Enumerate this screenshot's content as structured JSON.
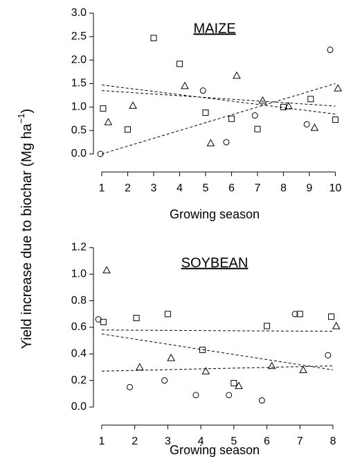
{
  "ylabel": {
    "text": "Yield increase due to biochar (Mg ha",
    "sup": "−1",
    "end": ")"
  },
  "chart_data": [
    {
      "type": "scatter",
      "title": "MAIZE",
      "xlabel": "Growing season",
      "xlim": [
        0.68,
        10.15
      ],
      "ylim": [
        0,
        3
      ],
      "xticks": [
        1,
        2,
        3,
        4,
        5,
        6,
        7,
        8,
        9,
        10
      ],
      "yticks": [
        {
          "value": 0,
          "label": "0.0"
        },
        {
          "value": 0.5,
          "label": "0.5"
        },
        {
          "value": 1,
          "label": "1.0"
        },
        {
          "value": 1.5,
          "label": "1.5"
        },
        {
          "value": 2,
          "label": "2.0"
        },
        {
          "value": 2.5,
          "label": "2.5"
        },
        {
          "value": 3,
          "label": "3.0"
        }
      ],
      "series": [
        {
          "marker": "square",
          "color": "#000000",
          "x": [
            1.05,
            2,
            3,
            4,
            5,
            6,
            7,
            8,
            9.05,
            10
          ],
          "values": [
            0.97,
            0.52,
            2.47,
            1.92,
            0.88,
            0.75,
            0.53,
            1.0,
            1.17,
            0.73
          ],
          "fit": {
            "x": [
              1,
              10
            ],
            "values": [
              1.35,
              1.02
            ]
          }
        },
        {
          "marker": "triangle",
          "color": "#000000",
          "x": [
            1.25,
            2.2,
            4.2,
            5.2,
            6.2,
            7.2,
            8.2,
            9.2,
            10.1
          ],
          "values": [
            0.68,
            1.03,
            1.45,
            0.23,
            1.67,
            1.14,
            1.02,
            0.56,
            1.4
          ],
          "fit": {
            "x": [
              1,
              10
            ],
            "values": [
              1.47,
              0.85
            ]
          }
        },
        {
          "marker": "circle",
          "color": "#000000",
          "x": [
            0.95,
            4.9,
            5.8,
            6.9,
            8.9,
            9.8
          ],
          "values": [
            0.0,
            1.35,
            0.25,
            0.82,
            0.63,
            2.22
          ],
          "fit": {
            "x": [
              1,
              10
            ],
            "values": [
              0.0,
              1.5
            ]
          }
        }
      ]
    },
    {
      "type": "scatter",
      "title": "SOYBEAN",
      "xlabel": "Growing season",
      "xlim": [
        0.75,
        8.19
      ],
      "ylim": [
        0,
        1.2
      ],
      "xticks": [
        1,
        2,
        3,
        4,
        5,
        6,
        7,
        8
      ],
      "yticks": [
        {
          "value": 0,
          "label": "0.0"
        },
        {
          "value": 0.2,
          "label": "0.2"
        },
        {
          "value": 0.4,
          "label": "0.4"
        },
        {
          "value": 0.6,
          "label": "0.6"
        },
        {
          "value": 0.8,
          "label": "0.8"
        },
        {
          "value": 1,
          "label": "1.0"
        },
        {
          "value": 1.2,
          "label": "1.2"
        }
      ],
      "series": [
        {
          "marker": "square",
          "color": "#000000",
          "x": [
            1.05,
            2.05,
            3,
            4.05,
            5,
            6,
            7,
            7.95
          ],
          "values": [
            0.64,
            0.67,
            0.7,
            0.43,
            0.18,
            0.61,
            0.7,
            0.68
          ],
          "fit": {
            "x": [
              1,
              8
            ],
            "values": [
              0.58,
              0.57
            ]
          }
        },
        {
          "marker": "triangle",
          "color": "#000000",
          "x": [
            1.15,
            2.15,
            3.1,
            4.15,
            5.15,
            6.15,
            7.1,
            8.1
          ],
          "values": [
            1.03,
            0.3,
            0.37,
            0.27,
            0.16,
            0.31,
            0.28,
            0.61
          ],
          "fit": {
            "x": [
              1,
              8
            ],
            "values": [
              0.55,
              0.28
            ]
          }
        },
        {
          "marker": "circle",
          "color": "#000000",
          "x": [
            0.9,
            1.85,
            2.9,
            3.85,
            4.85,
            5.85,
            6.85,
            7.85
          ],
          "values": [
            0.66,
            0.15,
            0.2,
            0.09,
            0.09,
            0.05,
            0.7,
            0.39
          ],
          "fit": {
            "x": [
              1,
              8
            ],
            "values": [
              0.27,
              0.31
            ]
          }
        }
      ]
    }
  ]
}
